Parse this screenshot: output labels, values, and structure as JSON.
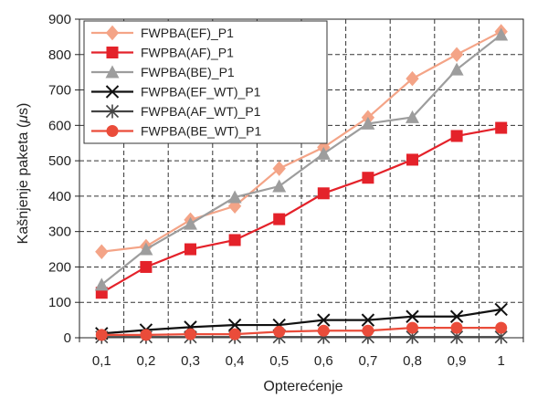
{
  "chart_data": {
    "type": "line",
    "xlabel": "Opterećenje",
    "ylabel_main": "Kašnjenje paketa (",
    "ylabel_unit": "μ",
    "ylabel_end": "s)",
    "x": [
      "0,1",
      "0,2",
      "0,3",
      "0,4",
      "0,5",
      "0,6",
      "0,7",
      "0,8",
      "0,9",
      "1"
    ],
    "ylim": [
      0,
      900
    ],
    "yticks": [
      0,
      100,
      200,
      300,
      400,
      500,
      600,
      700,
      800,
      900
    ],
    "grid": true,
    "legend_position": "top-left",
    "series": [
      {
        "name": "FWPBA(EF)_P1",
        "color": "#f4a487",
        "marker": "diamond",
        "values": [
          243,
          258,
          333,
          372,
          478,
          538,
          622,
          732,
          800,
          865
        ]
      },
      {
        "name": "FWPBA(AF)_P1",
        "color": "#e4222a",
        "marker": "square",
        "values": [
          127,
          200,
          250,
          276,
          335,
          408,
          452,
          503,
          570,
          593
        ]
      },
      {
        "name": "FWPBA(BE)_P1",
        "color": "#9d9d9d",
        "marker": "triangle",
        "values": [
          150,
          250,
          322,
          397,
          428,
          520,
          605,
          623,
          758,
          856
        ]
      },
      {
        "name": "FWPBA(EF_WT)_P1",
        "color": "#111111",
        "marker": "x",
        "values": [
          12,
          22,
          30,
          36,
          36,
          50,
          50,
          60,
          60,
          80
        ]
      },
      {
        "name": "FWPBA(AF_WT)_P1",
        "color": "#444444",
        "marker": "star",
        "values": [
          2,
          2,
          2,
          2,
          2,
          2,
          2,
          2,
          2,
          2
        ]
      },
      {
        "name": "FWPBA(BE_WT)_P1",
        "color": "#ea4c3a",
        "marker": "circle",
        "values": [
          8,
          8,
          10,
          10,
          17,
          20,
          20,
          28,
          28,
          28
        ]
      }
    ]
  }
}
